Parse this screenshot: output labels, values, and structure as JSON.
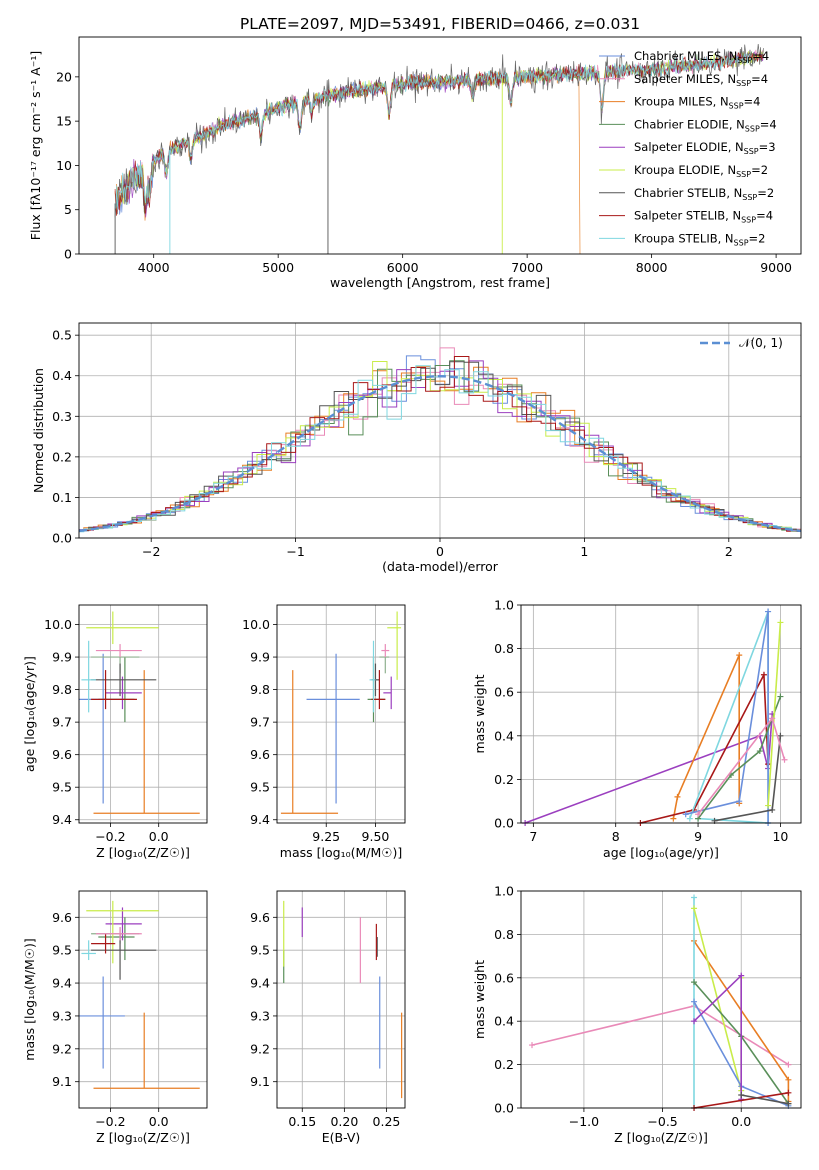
{
  "title": "PLATE=2097, MJD=53491, FIBERID=0466, z=0.031",
  "colors": {
    "blue": "#6a8fdc",
    "orange": "#e87e24",
    "green": "#5a8f5a",
    "purple": "#9b3fbf",
    "yellow": "#c9ec4a",
    "gray": "#555555",
    "red": "#a81818",
    "cyan": "#7fd7e0",
    "pink": "#e98ab8",
    "lgreen": "#8fb08f",
    "gauss": "#5b8fd3"
  },
  "chart_data": [
    {
      "id": "spectrum",
      "type": "line",
      "title": "",
      "xlabel": "wavelength [Angstrom, rest frame]",
      "ylabel": "Flux [fλ10⁻¹⁷ erg cm⁻² s⁻¹ A⁻¹]",
      "xlim": [
        3400,
        9200
      ],
      "ylim": [
        0,
        24.5
      ],
      "xticks": [
        4000,
        5000,
        6000,
        7000,
        8000,
        9000
      ],
      "yticks": [
        0,
        5,
        10,
        15,
        20
      ],
      "legend": "top-right",
      "continuum": {
        "x": [
          3680,
          3800,
          3900,
          4000,
          4100,
          4200,
          4400,
          4600,
          4800,
          5000,
          5200,
          5500,
          5800,
          6100,
          6400,
          6700,
          7000,
          7300,
          7600,
          7900,
          8200,
          8500,
          8800,
          8900
        ],
        "y": [
          5.5,
          8.0,
          9.0,
          10.5,
          11.5,
          12.2,
          13.5,
          14.8,
          15.5,
          16.5,
          17.3,
          18.2,
          18.8,
          19.3,
          19.5,
          19.8,
          20.0,
          20.3,
          20.5,
          20.8,
          21.2,
          21.6,
          22.2,
          22.5
        ]
      },
      "series": [
        {
          "name": "Chabrier MILES, NSSP=4",
          "label": "Chabrier MILES, N",
          "sub": "SSP",
          "rest": "=4",
          "color": "blue"
        },
        {
          "name": "Salpeter MILES, NSSP=4",
          "label": "Salpeter MILES, N",
          "sub": "SSP",
          "rest": "=4",
          "color": "pink"
        },
        {
          "name": "Kroupa MILES, NSSP=4",
          "label": "Kroupa MILES, N",
          "sub": "SSP",
          "rest": "=4",
          "color": "orange"
        },
        {
          "name": "Chabrier ELODIE, NSSP=4",
          "label": "Chabrier ELODIE, N",
          "sub": "SSP",
          "rest": "=4",
          "color": "green"
        },
        {
          "name": "Salpeter ELODIE, NSSP=3",
          "label": "Salpeter ELODIE, N",
          "sub": "SSP",
          "rest": "=3",
          "color": "purple"
        },
        {
          "name": "Kroupa ELODIE, NSSP=2",
          "label": "Kroupa ELODIE, N",
          "sub": "SSP",
          "rest": "=2",
          "color": "yellow"
        },
        {
          "name": "Chabrier STELIB, NSSP=2",
          "label": "Chabrier STELIB, N",
          "sub": "SSP",
          "rest": "=2",
          "color": "gray"
        },
        {
          "name": "Salpeter STELIB, NSSP=4",
          "label": "Salpeter STELIB, N",
          "sub": "SSP",
          "rest": "=4",
          "color": "red"
        },
        {
          "name": "Kroupa STELIB, NSSP=2",
          "label": "Kroupa STELIB, N",
          "sub": "SSP",
          "rest": "=2",
          "color": "cyan"
        }
      ]
    },
    {
      "id": "residuals",
      "type": "histogram",
      "title": "",
      "xlabel": "(data-model)/error",
      "ylabel": "Normed distribution",
      "xlim": [
        -2.5,
        2.5
      ],
      "ylim": [
        0,
        0.53
      ],
      "xticks": [
        -2,
        -1,
        0,
        1,
        2
      ],
      "yticks": [
        0.0,
        0.1,
        0.2,
        0.3,
        0.4,
        0.5
      ],
      "grid": true,
      "legend": "top-right",
      "gauss_label": "𝒩(0, 1)",
      "bin_width": 0.1,
      "series_colors": [
        "blue",
        "pink",
        "orange",
        "green",
        "purple",
        "yellow",
        "gray",
        "red",
        "cyan"
      ]
    },
    {
      "id": "age-Z",
      "type": "errorbar",
      "xlabel": "Z [log₁₀(Z/Z☉)]",
      "ylabel": "age  [log₁₀(age/yr)]",
      "xlim": [
        -0.33,
        0.2
      ],
      "ylim": [
        9.39,
        10.06
      ],
      "xticks": [
        -0.2,
        0.0
      ],
      "yticks": [
        9.4,
        9.5,
        9.6,
        9.7,
        9.8,
        9.9,
        10.0
      ],
      "xtick_labels": [
        "−0.2",
        "0.0"
      ],
      "grid": true,
      "points": [
        {
          "x": -0.23,
          "y": 9.77,
          "xerr": [
            0.11,
            0.09
          ],
          "yerr": [
            0.32,
            0.14
          ],
          "color": "blue"
        },
        {
          "x": -0.06,
          "y": 9.42,
          "xerr": [
            0.21,
            0.23
          ],
          "yerr": [
            0.0,
            0.44
          ],
          "color": "orange"
        },
        {
          "x": -0.14,
          "y": 9.77,
          "xerr": [
            0.11,
            0.04
          ],
          "yerr": [
            0.07,
            0.13
          ],
          "color": "green"
        },
        {
          "x": -0.16,
          "y": 9.9,
          "xerr": [
            0.12,
            0.08
          ],
          "yerr": [
            0.05,
            0.0
          ],
          "color": "lgreen"
        },
        {
          "x": -0.15,
          "y": 9.79,
          "xerr": [
            0.07,
            0.08
          ],
          "yerr": [
            0.05,
            0.05
          ],
          "color": "purple"
        },
        {
          "x": -0.19,
          "y": 9.99,
          "xerr": [
            0.11,
            0.19
          ],
          "yerr": [
            0.05,
            0.05
          ],
          "color": "yellow"
        },
        {
          "x": -0.16,
          "y": 9.83,
          "xerr": [
            0.12,
            0.15
          ],
          "yerr": [
            0.05,
            0.05
          ],
          "color": "gray"
        },
        {
          "x": -0.22,
          "y": 9.77,
          "xerr": [
            0.06,
            0.13
          ],
          "yerr": [
            0.03,
            0.09
          ],
          "color": "red"
        },
        {
          "x": -0.29,
          "y": 9.83,
          "xerr": [
            0.03,
            0.03
          ],
          "yerr": [
            0.1,
            0.12
          ],
          "color": "cyan"
        },
        {
          "x": -0.16,
          "y": 9.92,
          "xerr": [
            0.1,
            0.09
          ],
          "yerr": [
            0.02,
            0.02
          ],
          "color": "pink"
        }
      ]
    },
    {
      "id": "age-mass",
      "type": "errorbar",
      "xlabel": "mass [log₁₀(M/M☉)]",
      "ylabel": "",
      "xlim": [
        9.0,
        9.65
      ],
      "ylim": [
        9.39,
        10.06
      ],
      "xticks": [
        9.25,
        9.5
      ],
      "yticks": [
        9.4,
        9.5,
        9.6,
        9.7,
        9.8,
        9.9,
        10.0
      ],
      "xtick_labels": [
        "9.25",
        "9.50"
      ],
      "grid": true,
      "points": [
        {
          "x": 9.3,
          "y": 9.77,
          "xerr": [
            0.15,
            0.12
          ],
          "yerr": [
            0.32,
            0.14
          ],
          "color": "blue"
        },
        {
          "x": 9.08,
          "y": 9.42,
          "xerr": [
            0.06,
            0.23
          ],
          "yerr": [
            0.0,
            0.44
          ],
          "color": "orange"
        },
        {
          "x": 9.49,
          "y": 9.77,
          "xerr": [
            0.03,
            0.06
          ],
          "yerr": [
            0.07,
            0.13
          ],
          "color": "green"
        },
        {
          "x": 9.55,
          "y": 9.9,
          "xerr": [
            0.03,
            0.02
          ],
          "yerr": [
            0.05,
            0.0
          ],
          "color": "lgreen"
        },
        {
          "x": 9.58,
          "y": 9.79,
          "xerr": [
            0.04,
            0.0
          ],
          "yerr": [
            0.05,
            0.05
          ],
          "color": "purple"
        },
        {
          "x": 9.61,
          "y": 9.99,
          "xerr": [
            0.05,
            0.02
          ],
          "yerr": [
            0.16,
            0.05
          ],
          "color": "yellow"
        },
        {
          "x": 9.5,
          "y": 9.83,
          "xerr": [
            0.02,
            0.02
          ],
          "yerr": [
            0.05,
            0.05
          ],
          "color": "gray"
        },
        {
          "x": 9.52,
          "y": 9.77,
          "xerr": [
            0.04,
            0.03
          ],
          "yerr": [
            0.03,
            0.09
          ],
          "color": "red"
        },
        {
          "x": 9.49,
          "y": 9.83,
          "xerr": [
            0.02,
            0.01
          ],
          "yerr": [
            0.1,
            0.12
          ],
          "color": "cyan"
        },
        {
          "x": 9.55,
          "y": 9.92,
          "xerr": [
            0.02,
            0.02
          ],
          "yerr": [
            0.02,
            0.02
          ],
          "color": "pink"
        }
      ]
    },
    {
      "id": "weight-age",
      "type": "line",
      "xlabel": "age  [log₁₀(age/yr)]",
      "ylabel": "mass weight",
      "xlim": [
        6.85,
        10.25
      ],
      "ylim": [
        0,
        1.0
      ],
      "xticks": [
        7,
        8,
        9,
        10
      ],
      "yticks": [
        0.0,
        0.2,
        0.4,
        0.6,
        0.8,
        1.0
      ],
      "grid": true,
      "series": [
        {
          "color": "purple",
          "x": [
            6.9,
            9.75,
            9.85,
            9.9
          ],
          "y": [
            0.0,
            0.4,
            0.25,
            0.5
          ]
        },
        {
          "color": "orange",
          "x": [
            8.7,
            8.75,
            9.5,
            9.5
          ],
          "y": [
            0.02,
            0.12,
            0.77,
            0.09
          ]
        },
        {
          "color": "red",
          "x": [
            8.3,
            8.95,
            9.8,
            9.85
          ],
          "y": [
            0.0,
            0.06,
            0.68,
            0.27
          ]
        },
        {
          "color": "cyan",
          "x": [
            8.9,
            9.85,
            9.85,
            9.0
          ],
          "y": [
            0.02,
            0.97,
            0.0,
            0.02
          ]
        },
        {
          "color": "blue",
          "x": [
            8.85,
            9.5,
            9.85,
            9.85
          ],
          "y": [
            0.04,
            0.1,
            0.97,
            0.0
          ]
        },
        {
          "color": "green",
          "x": [
            9.0,
            9.4,
            9.75,
            10.0
          ],
          "y": [
            0.02,
            0.22,
            0.33,
            0.58
          ]
        },
        {
          "color": "yellow",
          "x": [
            9.85,
            10.0
          ],
          "y": [
            0.08,
            0.92
          ]
        },
        {
          "color": "gray",
          "x": [
            9.2,
            9.9,
            10.0
          ],
          "y": [
            0.01,
            0.06,
            0.4
          ]
        },
        {
          "color": "pink",
          "x": [
            9.0,
            9.9,
            10.05
          ],
          "y": [
            0.04,
            0.48,
            0.29
          ]
        }
      ]
    },
    {
      "id": "mass-Z",
      "type": "errorbar",
      "xlabel": "Z [log₁₀(Z/Z☉)]",
      "ylabel": "mass [log₁₀(M/M☉)]",
      "xlim": [
        -0.33,
        0.2
      ],
      "ylim": [
        9.02,
        9.68
      ],
      "xticks": [
        -0.2,
        0.0
      ],
      "yticks": [
        9.1,
        9.2,
        9.3,
        9.4,
        9.5,
        9.6
      ],
      "xtick_labels": [
        "−0.2",
        "0.0"
      ],
      "grid": true,
      "points": [
        {
          "x": -0.23,
          "y": 9.3,
          "xerr": [
            0.11,
            0.09
          ],
          "yerr": [
            0.16,
            0.12
          ],
          "color": "blue"
        },
        {
          "x": -0.06,
          "y": 9.08,
          "xerr": [
            0.21,
            0.23
          ],
          "yerr": [
            0.0,
            0.23
          ],
          "color": "orange"
        },
        {
          "x": -0.14,
          "y": 9.54,
          "xerr": [
            0.11,
            0.04
          ],
          "yerr": [
            0.07,
            0.06
          ],
          "color": "green"
        },
        {
          "x": -0.16,
          "y": 9.55,
          "xerr": [
            0.12,
            0.08
          ],
          "yerr": [
            0.03,
            0.02
          ],
          "color": "lgreen"
        },
        {
          "x": -0.15,
          "y": 9.58,
          "xerr": [
            0.07,
            0.08
          ],
          "yerr": [
            0.05,
            0.05
          ],
          "color": "purple"
        },
        {
          "x": -0.19,
          "y": 9.62,
          "xerr": [
            0.11,
            0.19
          ],
          "yerr": [
            0.16,
            0.03
          ],
          "color": "yellow"
        },
        {
          "x": -0.16,
          "y": 9.5,
          "xerr": [
            0.12,
            0.15
          ],
          "yerr": [
            0.09,
            0.05
          ],
          "color": "gray"
        },
        {
          "x": -0.22,
          "y": 9.52,
          "xerr": [
            0.06,
            0.04
          ],
          "yerr": [
            0.03,
            0.03
          ],
          "color": "red"
        },
        {
          "x": -0.29,
          "y": 9.49,
          "xerr": [
            0.03,
            0.03
          ],
          "yerr": [
            0.02,
            0.04
          ],
          "color": "cyan"
        },
        {
          "x": -0.16,
          "y": 9.55,
          "xerr": [
            0.1,
            0.09
          ],
          "yerr": [
            0.02,
            0.02
          ],
          "color": "pink"
        }
      ]
    },
    {
      "id": "mass-EBV",
      "type": "errorbar",
      "xlabel": "E(B-V)",
      "ylabel": "",
      "xlim": [
        0.12,
        0.272
      ],
      "ylim": [
        9.02,
        9.68
      ],
      "xticks": [
        0.15,
        0.2,
        0.25
      ],
      "yticks": [
        9.1,
        9.2,
        9.3,
        9.4,
        9.5,
        9.6
      ],
      "xtick_labels": [
        "0.15",
        "0.20",
        "0.25"
      ],
      "grid": true,
      "points": [
        {
          "x": 0.242,
          "y": 9.3,
          "xerr": [
            0,
            0
          ],
          "yerr": [
            0.16,
            0.12
          ],
          "color": "blue"
        },
        {
          "x": 0.268,
          "y": 9.08,
          "xerr": [
            0,
            0
          ],
          "yerr": [
            0.03,
            0.23
          ],
          "color": "orange"
        },
        {
          "x": 0.128,
          "y": 9.45,
          "xerr": [
            0,
            0
          ],
          "yerr": [
            0.05,
            0.05
          ],
          "color": "green"
        },
        {
          "x": 0.15,
          "y": 9.58,
          "xerr": [
            0,
            0
          ],
          "yerr": [
            0.04,
            0.05
          ],
          "color": "purple"
        },
        {
          "x": 0.128,
          "y": 9.55,
          "xerr": [
            0,
            0
          ],
          "yerr": [
            0.1,
            0.1
          ],
          "color": "yellow"
        },
        {
          "x": 0.239,
          "y": 9.51,
          "xerr": [
            0,
            0
          ],
          "yerr": [
            0.03,
            0.03
          ],
          "color": "gray"
        },
        {
          "x": 0.238,
          "y": 9.52,
          "xerr": [
            0,
            0
          ],
          "yerr": [
            0.05,
            0.06
          ],
          "color": "red"
        },
        {
          "x": 0.219,
          "y": 9.5,
          "xerr": [
            0,
            0
          ],
          "yerr": [
            0.1,
            0.1
          ],
          "color": "pink"
        }
      ]
    },
    {
      "id": "weight-Z",
      "type": "line",
      "xlabel": "Z [log₁₀(Z/Z☉)]",
      "ylabel": "mass weight",
      "xlim": [
        -1.4,
        0.38
      ],
      "ylim": [
        0,
        1.0
      ],
      "xticks": [
        -1.0,
        -0.5,
        0.0
      ],
      "yticks": [
        0.0,
        0.2,
        0.4,
        0.6,
        0.8,
        1.0
      ],
      "xtick_labels": [
        "−1.0",
        "−0.5",
        "0.0"
      ],
      "grid": true,
      "series": [
        {
          "color": "pink",
          "x": [
            -1.33,
            -0.3,
            0.3
          ],
          "y": [
            0.29,
            0.47,
            0.2
          ]
        },
        {
          "color": "orange",
          "x": [
            -0.3,
            0.3,
            0.3
          ],
          "y": [
            0.77,
            0.13,
            0.03
          ]
        },
        {
          "color": "cyan",
          "x": [
            -0.3,
            -0.3
          ],
          "y": [
            0.97,
            0.0
          ]
        },
        {
          "color": "yellow",
          "x": [
            -0.3,
            0.0,
            0.0
          ],
          "y": [
            0.92,
            0.08,
            0.6
          ]
        },
        {
          "color": "blue",
          "x": [
            -0.3,
            0.0,
            0.3
          ],
          "y": [
            0.49,
            0.1,
            0.01
          ]
        },
        {
          "color": "green",
          "x": [
            -0.3,
            0.0,
            0.3
          ],
          "y": [
            0.58,
            0.33,
            0.02
          ]
        },
        {
          "color": "purple",
          "x": [
            -0.3,
            0.0,
            0.0
          ],
          "y": [
            0.4,
            0.61,
            0.04
          ]
        },
        {
          "color": "red",
          "x": [
            -0.3,
            0.3
          ],
          "y": [
            0.0,
            0.07
          ]
        },
        {
          "color": "gray",
          "x": [
            0.0,
            0.3
          ],
          "y": [
            0.06,
            0.02
          ]
        }
      ]
    }
  ]
}
